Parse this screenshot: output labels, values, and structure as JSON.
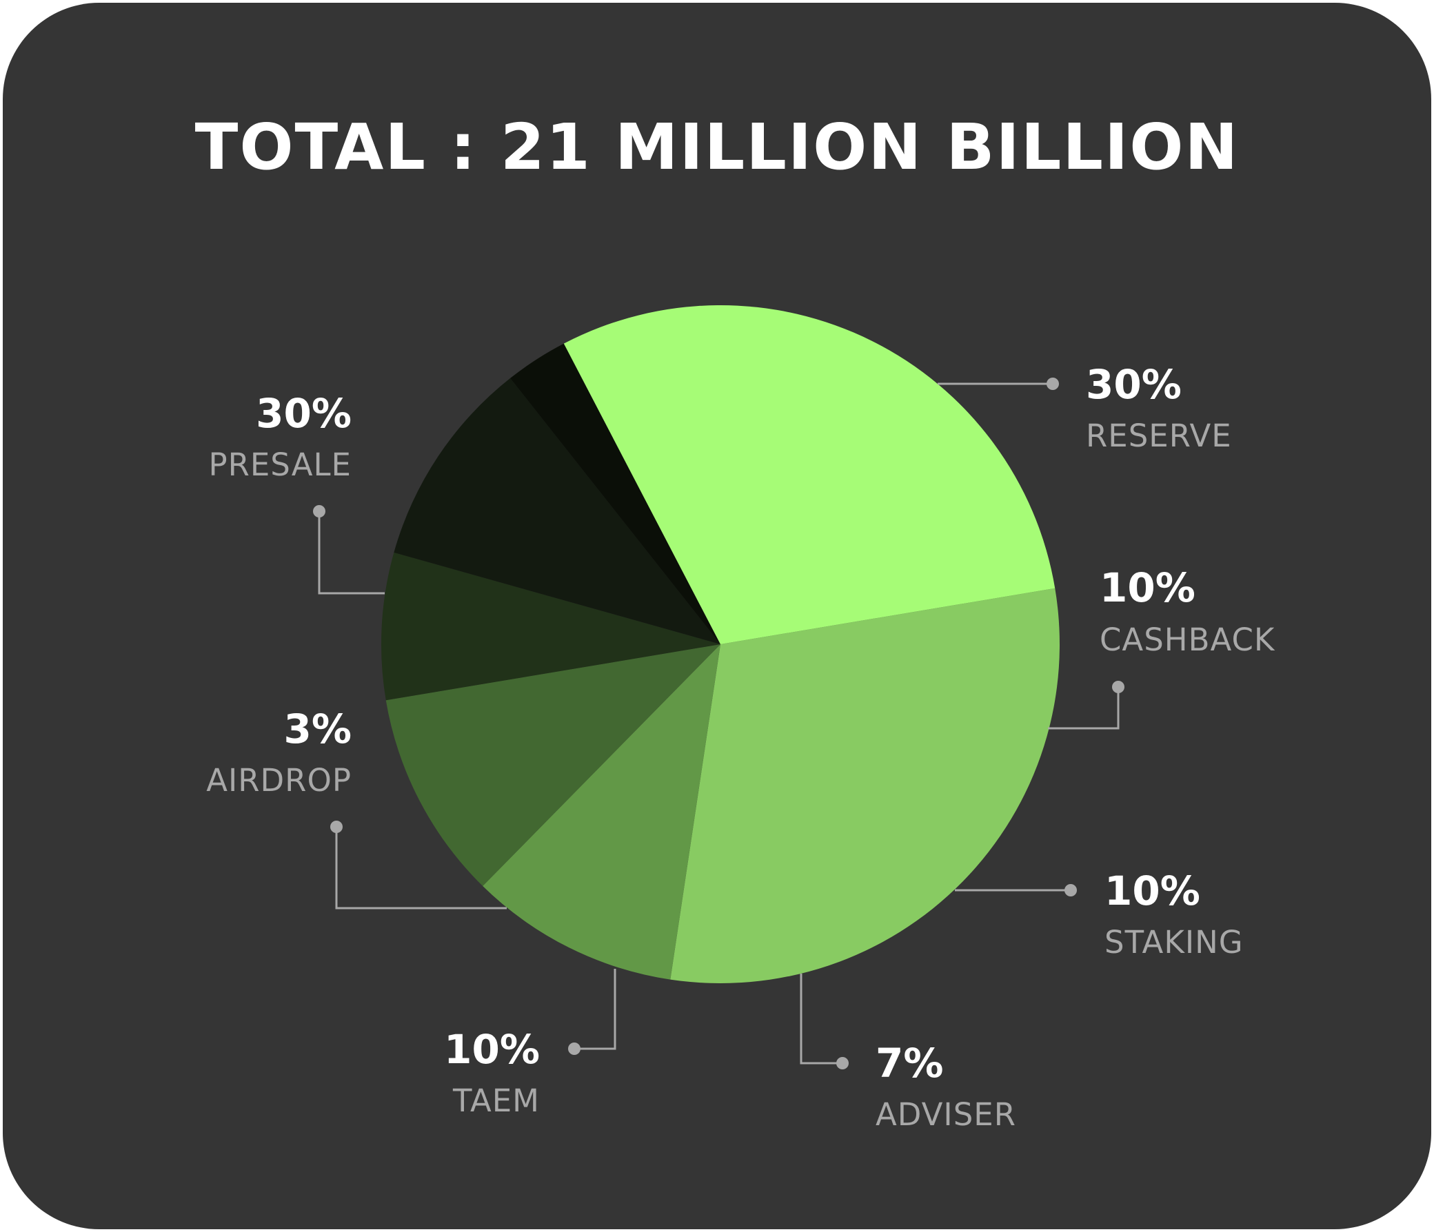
{
  "chart_data": {
    "type": "pie",
    "title": "TOTAL : 21 MILLION BILLION",
    "slices": [
      {
        "label": "RESERVE",
        "value_label": "30%",
        "value": 30,
        "color": "#88cb62"
      },
      {
        "label": "CASHBACK",
        "value_label": "10%",
        "value": 10,
        "color": "#629847"
      },
      {
        "label": "STAKING",
        "value_label": "10%",
        "value": 10,
        "color": "#426831"
      },
      {
        "label": "ADVISER",
        "value_label": "7%",
        "value": 7,
        "color": "#213219"
      },
      {
        "label": "TAEM",
        "value_label": "10%",
        "value": 10,
        "color": "#131a10"
      },
      {
        "label": "AIRDROP",
        "value_label": "3%",
        "value": 3,
        "color": "#0b0f08"
      },
      {
        "label": "PRESALE",
        "value_label": "30%",
        "value": 30,
        "color": "#a6fc76"
      }
    ]
  }
}
